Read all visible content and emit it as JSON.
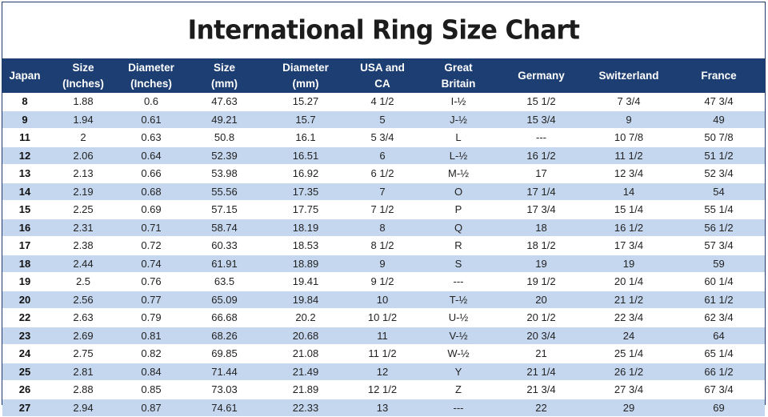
{
  "title": "International Ring Size Chart",
  "colors": {
    "header_bg": "#1d3e72",
    "stripe": "#c5d7ef",
    "border": "#1f3b6b"
  },
  "columns": [
    [
      "Japan"
    ],
    [
      "Size",
      "(Inches)"
    ],
    [
      "Diameter",
      "(Inches)"
    ],
    [
      "Size",
      "(mm)"
    ],
    [
      "Diameter",
      "(mm)"
    ],
    [
      "USA and",
      "CA"
    ],
    [
      "Great",
      "Britain"
    ],
    [
      "Germany"
    ],
    [
      "Switzerland"
    ],
    [
      "France"
    ]
  ],
  "rows": [
    [
      "8",
      "1.88",
      "0.6",
      "47.63",
      "15.27",
      "4 1/2",
      "I-½",
      "15 1/2",
      "7 3/4",
      "47 3/4"
    ],
    [
      "9",
      "1.94",
      "0.61",
      "49.21",
      "15.7",
      "5",
      "J-½",
      "15 3/4",
      "9",
      "49"
    ],
    [
      "11",
      "2",
      "0.63",
      "50.8",
      "16.1",
      "5 3/4",
      "L",
      "---",
      "10 7/8",
      "50 7/8"
    ],
    [
      "12",
      "2.06",
      "0.64",
      "52.39",
      "16.51",
      "6",
      "L-½",
      "16 1/2",
      "11 1/2",
      "51 1/2"
    ],
    [
      "13",
      "2.13",
      "0.66",
      "53.98",
      "16.92",
      "6 1/2",
      "M-½",
      "17",
      "12 3/4",
      "52 3/4"
    ],
    [
      "14",
      "2.19",
      "0.68",
      "55.56",
      "17.35",
      "7",
      "O",
      "17 1/4",
      "14",
      "54"
    ],
    [
      "15",
      "2.25",
      "0.69",
      "57.15",
      "17.75",
      "7 1/2",
      "P",
      "17 3/4",
      "15 1/4",
      "55 1/4"
    ],
    [
      "16",
      "2.31",
      "0.71",
      "58.74",
      "18.19",
      "8",
      "Q",
      "18",
      "16 1/2",
      "56 1/2"
    ],
    [
      "17",
      "2.38",
      "0.72",
      "60.33",
      "18.53",
      "8 1/2",
      "R",
      "18 1/2",
      "17 3/4",
      "57 3/4"
    ],
    [
      "18",
      "2.44",
      "0.74",
      "61.91",
      "18.89",
      "9",
      "S",
      "19",
      "19",
      "59"
    ],
    [
      "19",
      "2.5",
      "0.76",
      "63.5",
      "19.41",
      "9 1/2",
      "---",
      "19 1/2",
      "20 1/4",
      "60 1/4"
    ],
    [
      "20",
      "2.56",
      "0.77",
      "65.09",
      "19.84",
      "10",
      "T-½",
      "20",
      "21 1/2",
      "61 1/2"
    ],
    [
      "22",
      "2.63",
      "0.79",
      "66.68",
      "20.2",
      "10 1/2",
      "U-½",
      "20 1/2",
      "22 3/4",
      "62 3/4"
    ],
    [
      "23",
      "2.69",
      "0.81",
      "68.26",
      "20.68",
      "11",
      "V-½",
      "20 3/4",
      "24",
      "64"
    ],
    [
      "24",
      "2.75",
      "0.82",
      "69.85",
      "21.08",
      "11 1/2",
      "W-½",
      "21",
      "25 1/4",
      "65 1/4"
    ],
    [
      "25",
      "2.81",
      "0.84",
      "71.44",
      "21.49",
      "12",
      "Y",
      "21 1/4",
      "26 1/2",
      "66 1/2"
    ],
    [
      "26",
      "2.88",
      "0.85",
      "73.03",
      "21.89",
      "12 1/2",
      "Z",
      "21 3/4",
      "27 3/4",
      "67 3/4"
    ],
    [
      "27",
      "2.94",
      "0.87",
      "74.61",
      "22.33",
      "13",
      "---",
      "22",
      "29",
      "69"
    ]
  ]
}
